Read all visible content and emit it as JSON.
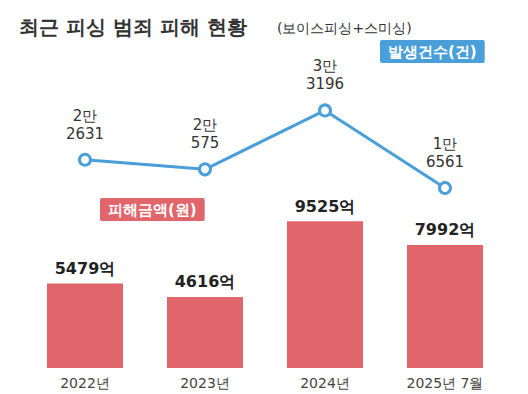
{
  "chart_data": {
    "type": "bar+line",
    "title": "최근 피싱 범죄 피해 현황",
    "subtitle": "(보이스피싱+스미싱)",
    "categories": [
      "2022년",
      "2023년",
      "2024년",
      "2025년 7월"
    ],
    "series": [
      {
        "name": "피해금액(원)",
        "type": "bar",
        "color": "#e0666b",
        "values": [
          5479,
          4616,
          9525,
          7992
        ],
        "value_labels": [
          "5479억",
          "4616억",
          "9525억",
          "7992억"
        ]
      },
      {
        "name": "발생건수(건)",
        "type": "line",
        "axis": "y2",
        "color": "#4a9fd8",
        "marker": "circle",
        "values": [
          22631,
          20575,
          33196,
          16561
        ],
        "value_labels": [
          "2만\n2631",
          "2만\n575",
          "3만\n3196",
          "1만\n6561"
        ]
      }
    ],
    "ylim": [
      0,
      20000
    ],
    "yticks": [
      0,
      5000,
      10000,
      15000,
      20000
    ],
    "y2lim": [
      -22000,
      44000
    ],
    "y2ticks": [
      -22000,
      -11000,
      0,
      11000,
      22000,
      33000,
      44000
    ],
    "grid": false,
    "data_labels": true,
    "tick_labels": "x"
  }
}
